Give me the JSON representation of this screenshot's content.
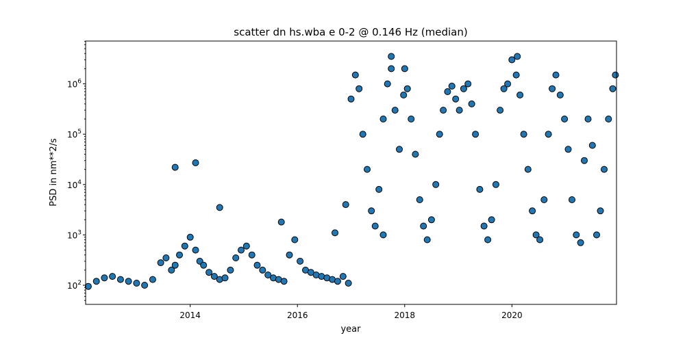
{
  "chart_data": {
    "type": "scatter",
    "title": "scatter dn hs.wba e 0-2 @ 0.146 Hz (median)",
    "xlabel": "year",
    "ylabel": "PSD in nm**2/s",
    "xlim": [
      2012.05,
      2021.95
    ],
    "ylim_log10": [
      1.62,
      6.85
    ],
    "yscale": "log",
    "grid": false,
    "marker_color": "#1f77b4",
    "marker_edge": "#000000",
    "x_ticks": [
      {
        "value": 2014,
        "label": "2014"
      },
      {
        "value": 2016,
        "label": "2016"
      },
      {
        "value": 2018,
        "label": "2018"
      },
      {
        "value": 2020,
        "label": "2020"
      }
    ],
    "y_ticks": [
      {
        "exp": 2,
        "base": "10",
        "sup": "2"
      },
      {
        "exp": 3,
        "base": "10",
        "sup": "3"
      },
      {
        "exp": 4,
        "base": "10",
        "sup": "4"
      },
      {
        "exp": 5,
        "base": "10",
        "sup": "5"
      },
      {
        "exp": 6,
        "base": "10",
        "sup": "6"
      }
    ],
    "x": [
      2012.1,
      2012.25,
      2012.4,
      2012.55,
      2012.7,
      2012.85,
      2013.0,
      2013.15,
      2013.3,
      2013.45,
      2013.55,
      2013.65,
      2013.72,
      2013.8,
      2013.9,
      2014.0,
      2014.1,
      2014.18,
      2014.25,
      2014.35,
      2014.45,
      2014.55,
      2014.65,
      2014.75,
      2014.85,
      2014.95,
      2015.05,
      2015.15,
      2015.25,
      2015.35,
      2015.45,
      2015.55,
      2015.65,
      2015.75,
      2015.85,
      2015.95,
      2016.05,
      2016.15,
      2016.25,
      2016.35,
      2016.45,
      2016.55,
      2016.65,
      2016.75,
      2016.85,
      2016.95,
      2017.0,
      2017.08,
      2017.15,
      2017.22,
      2017.3,
      2017.38,
      2017.45,
      2017.52,
      2017.6,
      2017.68,
      2017.75,
      2017.82,
      2017.9,
      2017.98,
      2018.05,
      2018.12,
      2018.2,
      2018.28,
      2018.35,
      2018.42,
      2018.5,
      2018.58,
      2018.65,
      2018.72,
      2018.8,
      2018.88,
      2018.95,
      2019.02,
      2019.1,
      2019.18,
      2019.25,
      2019.32,
      2019.4,
      2019.48,
      2019.55,
      2019.62,
      2019.7,
      2019.78,
      2019.85,
      2019.92,
      2020.0,
      2020.08,
      2020.15,
      2020.22,
      2020.3,
      2020.38,
      2020.45,
      2020.52,
      2020.6,
      2020.68,
      2020.75,
      2020.82,
      2020.9,
      2020.98,
      2021.05,
      2021.12,
      2021.2,
      2021.28,
      2021.35,
      2021.42,
      2021.5,
      2021.58,
      2021.65,
      2021.72,
      2021.8,
      2021.88,
      2021.93,
      2013.72,
      2014.1,
      2014.55,
      2016.7,
      2016.9,
      2017.75,
      2020.1,
      2018.0,
      2017.6,
      2015.7
    ],
    "y": [
      95,
      120,
      140,
      150,
      130,
      120,
      110,
      100,
      130,
      280,
      350,
      200,
      250,
      400,
      600,
      900,
      500,
      300,
      250,
      180,
      150,
      130,
      140,
      200,
      350,
      500,
      600,
      400,
      250,
      200,
      160,
      140,
      130,
      120,
      400,
      800,
      300,
      200,
      180,
      160,
      150,
      140,
      130,
      120,
      150,
      110,
      500000,
      1500000,
      800000,
      100000,
      20000,
      3000,
      1500,
      8000,
      200000,
      1000000,
      2000000,
      300000,
      50000,
      600000,
      800000,
      200000,
      40000,
      5000,
      1500,
      800,
      2000,
      10000,
      100000,
      300000,
      700000,
      900000,
      500000,
      300000,
      800000,
      1000000,
      400000,
      100000,
      8000,
      1500,
      800,
      2000,
      10000,
      300000,
      800000,
      1000000,
      3000000,
      1500000,
      600000,
      100000,
      20000,
      3000,
      1000,
      800,
      5000,
      100000,
      800000,
      1500000,
      600000,
      200000,
      50000,
      5000,
      1000,
      700,
      30000,
      200000,
      60000,
      1000,
      3000,
      20000,
      200000,
      800000,
      1500000,
      22000,
      27000,
      3500,
      1100,
      4000,
      3500000,
      3500000,
      2000000,
      1000,
      1800
    ]
  }
}
